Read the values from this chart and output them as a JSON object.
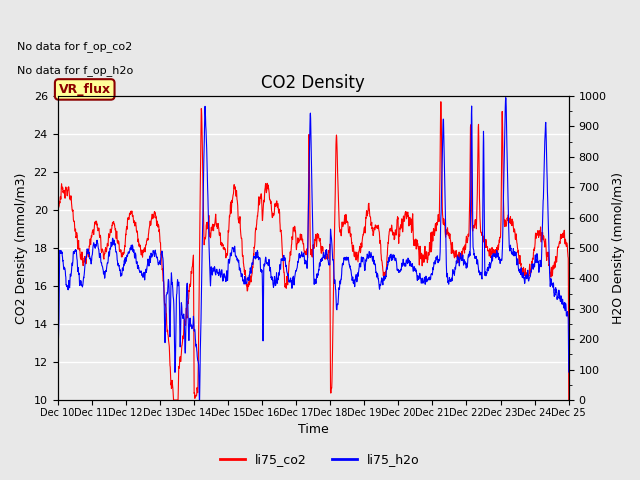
{
  "title": "CO2 Density",
  "xlabel": "Time",
  "ylabel_left": "CO2 Density (mmol/m3)",
  "ylabel_right": "H2O Density (mmol/m3)",
  "ylim_left": [
    10,
    26
  ],
  "ylim_right": [
    0,
    1000
  ],
  "yticks_left": [
    10,
    12,
    14,
    16,
    18,
    20,
    22,
    24,
    26
  ],
  "yticks_right": [
    0,
    100,
    200,
    300,
    400,
    500,
    600,
    700,
    800,
    900,
    1000
  ],
  "xtick_labels": [
    "Dec 10",
    "Dec 11",
    "Dec 12",
    "Dec 13",
    "Dec 14",
    "Dec 15",
    "Dec 16",
    "Dec 17",
    "Dec 18",
    "Dec 19",
    "Dec 20",
    "Dec 21",
    "Dec 22",
    "Dec 23",
    "Dec 24",
    "Dec 25"
  ],
  "text_no_data_1": "No data for f_op_co2",
  "text_no_data_2": "No data for f_op_h2o",
  "vr_flux_label": "VR_flux",
  "legend_labels": [
    "li75_co2",
    "li75_h2o"
  ],
  "co2_color": "#FF0000",
  "h2o_color": "#0000FF",
  "bg_color": "#E8E8E8",
  "plot_bg_color": "#EBEBEB",
  "grid_color": "#FFFFFF",
  "title_fontsize": 12,
  "label_fontsize": 9,
  "tick_fontsize": 8,
  "n_days": 15,
  "n_pts_per_day": 144
}
